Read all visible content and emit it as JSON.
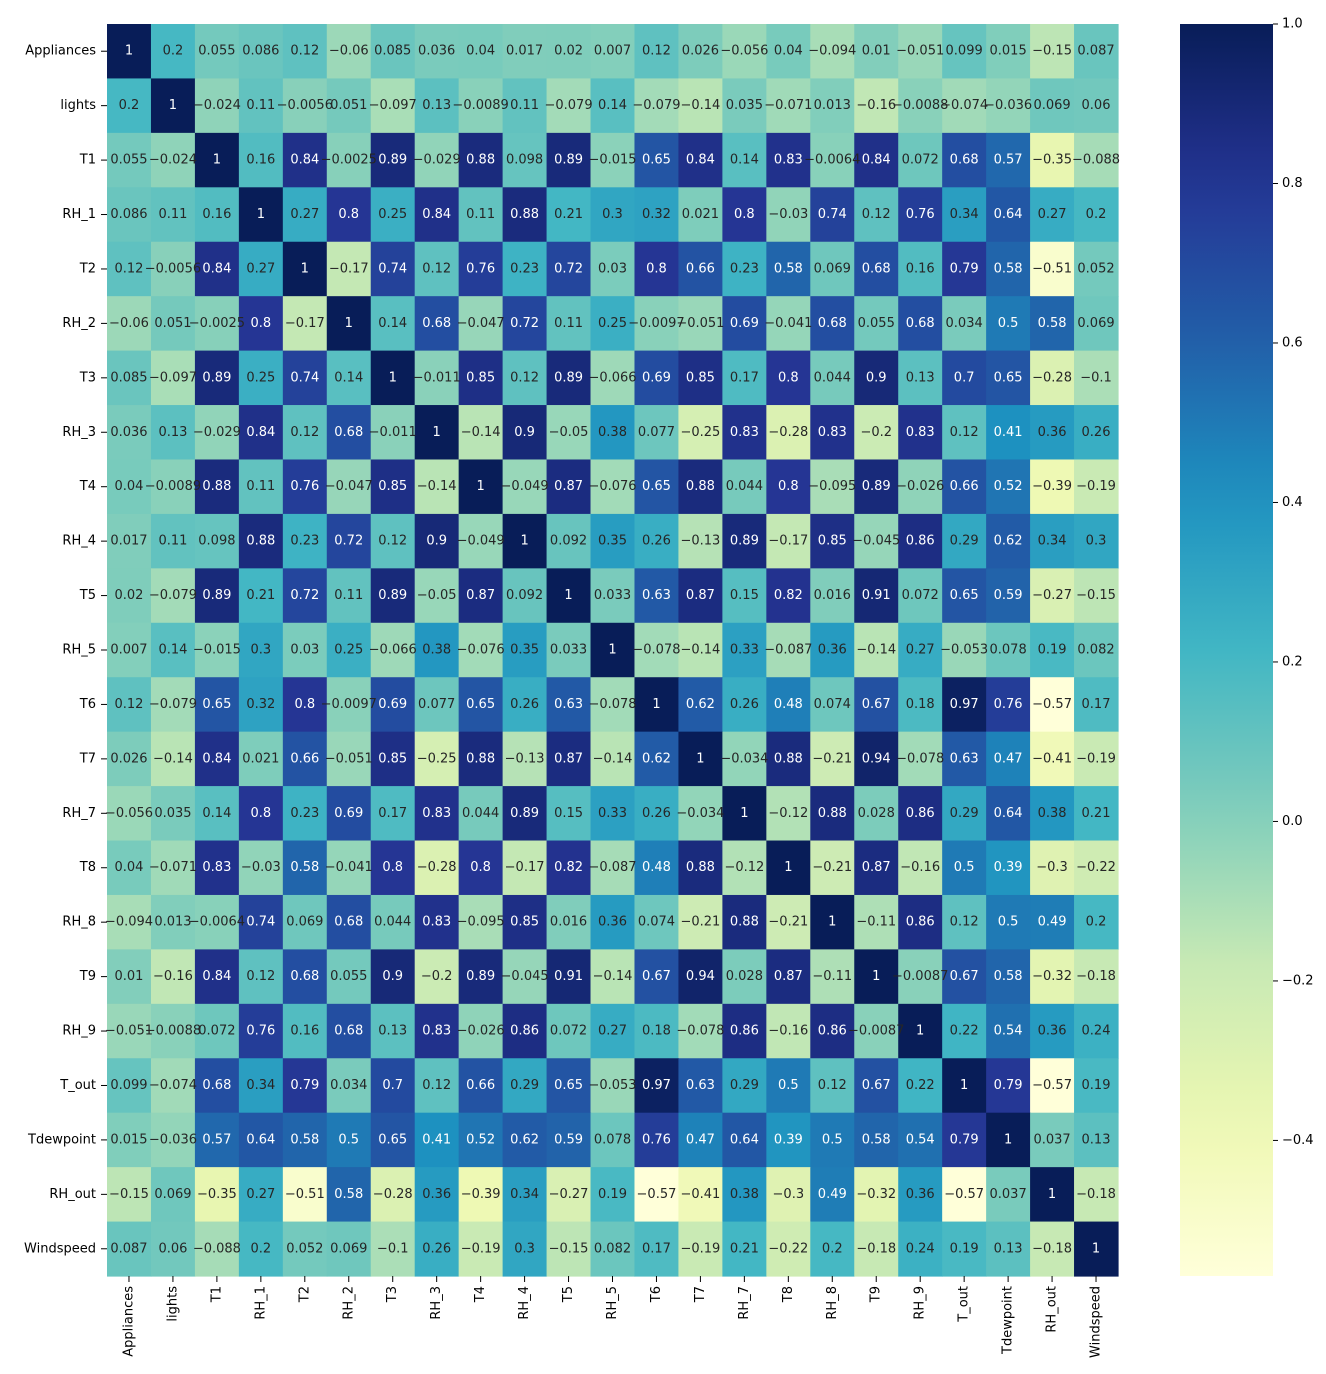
{
  "chart_data": {
    "type": "heatmap",
    "title": "",
    "labels": [
      "Appliances",
      "lights",
      "T1",
      "RH_1",
      "T2",
      "RH_2",
      "T3",
      "RH_3",
      "T4",
      "RH_4",
      "T5",
      "RH_5",
      "T6",
      "T7",
      "RH_7",
      "T8",
      "RH_8",
      "T9",
      "RH_9",
      "T_out",
      "Tdewpoint",
      "RH_out",
      "Windspeed"
    ],
    "values": [
      [
        1,
        0.2,
        0.055,
        0.086,
        0.12,
        -0.06,
        0.085,
        0.036,
        0.04,
        0.017,
        0.02,
        0.007,
        0.12,
        0.026,
        -0.056,
        0.04,
        -0.094,
        0.01,
        -0.051,
        0.099,
        0.015,
        -0.15,
        0.087
      ],
      [
        0.2,
        1,
        -0.024,
        0.11,
        -0.0056,
        0.051,
        -0.097,
        0.13,
        -0.0089,
        0.11,
        -0.079,
        0.14,
        -0.079,
        -0.14,
        0.035,
        -0.071,
        0.013,
        -0.16,
        -0.0088,
        -0.074,
        -0.036,
        0.069,
        0.06
      ],
      [
        0.055,
        -0.024,
        1,
        0.16,
        0.84,
        -0.0025,
        0.89,
        -0.029,
        0.88,
        0.098,
        0.89,
        -0.015,
        0.65,
        0.84,
        0.14,
        0.83,
        -0.0064,
        0.84,
        0.072,
        0.68,
        0.57,
        -0.35,
        -0.088
      ],
      [
        0.086,
        0.11,
        0.16,
        1,
        0.27,
        0.8,
        0.25,
        0.84,
        0.11,
        0.88,
        0.21,
        0.3,
        0.32,
        0.021,
        0.8,
        -0.03,
        0.74,
        0.12,
        0.76,
        0.34,
        0.64,
        0.27,
        0.2
      ],
      [
        0.12,
        -0.0056,
        0.84,
        0.27,
        1,
        -0.17,
        0.74,
        0.12,
        0.76,
        0.23,
        0.72,
        0.03,
        0.8,
        0.66,
        0.23,
        0.58,
        0.069,
        0.68,
        0.16,
        0.79,
        0.58,
        -0.51,
        0.052
      ],
      [
        -0.06,
        0.051,
        -0.0025,
        0.8,
        -0.17,
        1,
        0.14,
        0.68,
        -0.047,
        0.72,
        0.11,
        0.25,
        -0.0097,
        -0.051,
        0.69,
        -0.041,
        0.68,
        0.055,
        0.68,
        0.034,
        0.5,
        0.58,
        0.069
      ],
      [
        0.085,
        -0.097,
        0.89,
        0.25,
        0.74,
        0.14,
        1,
        -0.011,
        0.85,
        0.12,
        0.89,
        -0.066,
        0.69,
        0.85,
        0.17,
        0.8,
        0.044,
        0.9,
        0.13,
        0.7,
        0.65,
        -0.28,
        -0.1
      ],
      [
        0.036,
        0.13,
        -0.029,
        0.84,
        0.12,
        0.68,
        -0.011,
        1,
        -0.14,
        0.9,
        -0.05,
        0.38,
        0.077,
        -0.25,
        0.83,
        -0.28,
        0.83,
        -0.2,
        0.83,
        0.12,
        0.41,
        0.36,
        0.26
      ],
      [
        0.04,
        -0.0089,
        0.88,
        0.11,
        0.76,
        -0.047,
        0.85,
        -0.14,
        1,
        -0.049,
        0.87,
        -0.076,
        0.65,
        0.88,
        0.044,
        0.8,
        -0.095,
        0.89,
        -0.026,
        0.66,
        0.52,
        -0.39,
        -0.19
      ],
      [
        0.017,
        0.11,
        0.098,
        0.88,
        0.23,
        0.72,
        0.12,
        0.9,
        -0.049,
        1,
        0.092,
        0.35,
        0.26,
        -0.13,
        0.89,
        -0.17,
        0.85,
        -0.045,
        0.86,
        0.29,
        0.62,
        0.34,
        0.3
      ],
      [
        0.02,
        -0.079,
        0.89,
        0.21,
        0.72,
        0.11,
        0.89,
        -0.05,
        0.87,
        0.092,
        1,
        0.033,
        0.63,
        0.87,
        0.15,
        0.82,
        0.016,
        0.91,
        0.072,
        0.65,
        0.59,
        -0.27,
        -0.15
      ],
      [
        0.007,
        0.14,
        -0.015,
        0.3,
        0.03,
        0.25,
        -0.066,
        0.38,
        -0.076,
        0.35,
        0.033,
        1,
        -0.078,
        -0.14,
        0.33,
        -0.087,
        0.36,
        -0.14,
        0.27,
        -0.053,
        0.078,
        0.19,
        0.082
      ],
      [
        0.12,
        -0.079,
        0.65,
        0.32,
        0.8,
        -0.0097,
        0.69,
        0.077,
        0.65,
        0.26,
        0.63,
        -0.078,
        1,
        0.62,
        0.26,
        0.48,
        0.074,
        0.67,
        0.18,
        0.97,
        0.76,
        -0.57,
        0.17
      ],
      [
        0.026,
        -0.14,
        0.84,
        0.021,
        0.66,
        -0.051,
        0.85,
        -0.25,
        0.88,
        -0.13,
        0.87,
        -0.14,
        0.62,
        1,
        -0.034,
        0.88,
        -0.21,
        0.94,
        -0.078,
        0.63,
        0.47,
        -0.41,
        -0.19
      ],
      [
        -0.056,
        0.035,
        0.14,
        0.8,
        0.23,
        0.69,
        0.17,
        0.83,
        0.044,
        0.89,
        0.15,
        0.33,
        0.26,
        -0.034,
        1,
        -0.12,
        0.88,
        0.028,
        0.86,
        0.29,
        0.64,
        0.38,
        0.21
      ],
      [
        0.04,
        -0.071,
        0.83,
        -0.03,
        0.58,
        -0.041,
        0.8,
        -0.28,
        0.8,
        -0.17,
        0.82,
        -0.087,
        0.48,
        0.88,
        -0.12,
        1,
        -0.21,
        0.87,
        -0.16,
        0.5,
        0.39,
        -0.3,
        -0.22
      ],
      [
        -0.094,
        0.013,
        -0.0064,
        0.74,
        0.069,
        0.68,
        0.044,
        0.83,
        -0.095,
        0.85,
        0.016,
        0.36,
        0.074,
        -0.21,
        0.88,
        -0.21,
        1,
        -0.11,
        0.86,
        0.12,
        0.5,
        0.49,
        0.2
      ],
      [
        0.01,
        -0.16,
        0.84,
        0.12,
        0.68,
        0.055,
        0.9,
        -0.2,
        0.89,
        -0.045,
        0.91,
        -0.14,
        0.67,
        0.94,
        0.028,
        0.87,
        -0.11,
        1,
        -0.0087,
        0.67,
        0.58,
        -0.32,
        -0.18
      ],
      [
        -0.051,
        -0.0088,
        0.072,
        0.76,
        0.16,
        0.68,
        0.13,
        0.83,
        -0.026,
        0.86,
        0.072,
        0.27,
        0.18,
        -0.078,
        0.86,
        -0.16,
        0.86,
        -0.0087,
        1,
        0.22,
        0.54,
        0.36,
        0.24
      ],
      [
        0.099,
        -0.074,
        0.68,
        0.34,
        0.79,
        0.034,
        0.7,
        0.12,
        0.66,
        0.29,
        0.65,
        -0.053,
        0.97,
        0.63,
        0.29,
        0.5,
        0.12,
        0.67,
        0.22,
        1,
        0.79,
        -0.57,
        0.19
      ],
      [
        0.015,
        -0.036,
        0.57,
        0.64,
        0.58,
        0.5,
        0.65,
        0.41,
        0.52,
        0.62,
        0.59,
        0.078,
        0.76,
        0.47,
        0.64,
        0.39,
        0.5,
        0.58,
        0.54,
        0.79,
        1,
        0.037,
        0.13
      ],
      [
        -0.15,
        0.069,
        -0.35,
        0.27,
        -0.51,
        0.58,
        -0.28,
        0.36,
        -0.39,
        0.34,
        -0.27,
        0.19,
        -0.57,
        -0.41,
        0.38,
        -0.3,
        0.49,
        -0.32,
        0.36,
        -0.57,
        0.037,
        1,
        -0.18
      ],
      [
        0.087,
        0.06,
        -0.088,
        0.2,
        0.052,
        0.069,
        -0.1,
        0.26,
        -0.19,
        0.3,
        -0.15,
        0.082,
        0.17,
        -0.19,
        0.21,
        -0.22,
        0.2,
        -0.18,
        0.24,
        0.19,
        0.13,
        -0.18,
        1
      ]
    ],
    "colormap": "YlGnBu",
    "colorbar": {
      "range": [
        -0.57,
        1.0
      ],
      "ticks": [
        {
          "value": 1.0,
          "label": "1.0"
        },
        {
          "value": 0.8,
          "label": "0.8"
        },
        {
          "value": 0.6,
          "label": "0.6"
        },
        {
          "value": 0.4,
          "label": "0.4"
        },
        {
          "value": 0.2,
          "label": "0.2"
        },
        {
          "value": 0.0,
          "label": "0.0"
        },
        {
          "value": -0.2,
          "label": "−0.2"
        },
        {
          "value": -0.4,
          "label": "−0.4"
        }
      ]
    },
    "annotations": true,
    "grid": false,
    "legend": "colorbar right"
  }
}
